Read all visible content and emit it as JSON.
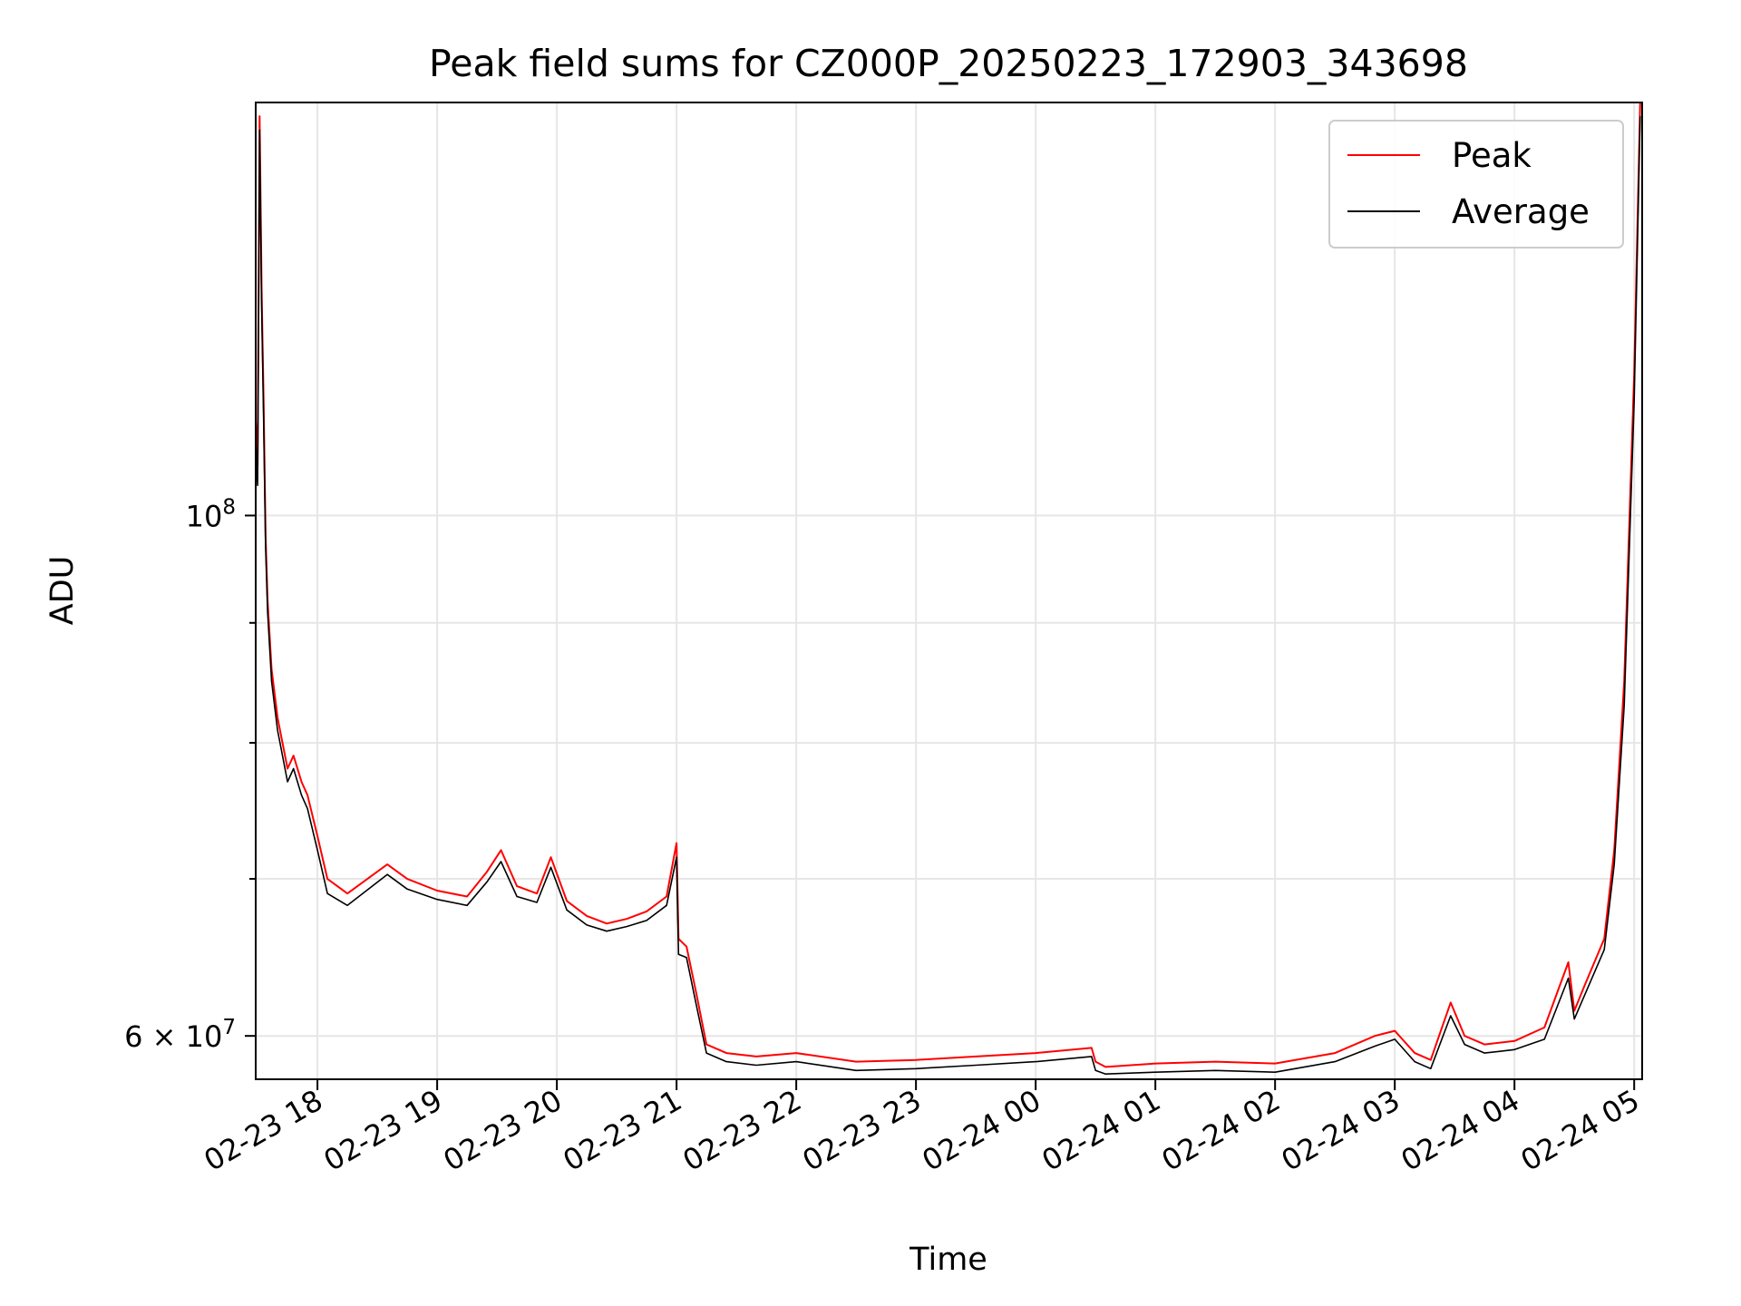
{
  "chart_data": {
    "type": "line",
    "title": "Peak field sums for CZ000P_20250223_172903_343698",
    "xlabel": "Time",
    "ylabel": "ADU",
    "y_scale": "log",
    "xlim": [
      "2025-02-23T17:29:03",
      "2025-02-24T05:04:00"
    ],
    "ylim": [
      57500000,
      150000000
    ],
    "x_ticks": [
      {
        "t": "2025-02-23T18:00",
        "label": "02-23 18"
      },
      {
        "t": "2025-02-23T19:00",
        "label": "02-23 19"
      },
      {
        "t": "2025-02-23T20:00",
        "label": "02-23 20"
      },
      {
        "t": "2025-02-23T21:00",
        "label": "02-23 21"
      },
      {
        "t": "2025-02-23T22:00",
        "label": "02-23 22"
      },
      {
        "t": "2025-02-23T23:00",
        "label": "02-23 23"
      },
      {
        "t": "2025-02-24T00:00",
        "label": "02-24 00"
      },
      {
        "t": "2025-02-24T01:00",
        "label": "02-24 01"
      },
      {
        "t": "2025-02-24T02:00",
        "label": "02-24 02"
      },
      {
        "t": "2025-02-24T03:00",
        "label": "02-24 03"
      },
      {
        "t": "2025-02-24T04:00",
        "label": "02-24 04"
      },
      {
        "t": "2025-02-24T05:00",
        "label": "02-24 05"
      }
    ],
    "y_major_ticks": [
      {
        "v": 100000000,
        "label_base": "10",
        "label_exp": "8"
      },
      {
        "v": 60000000,
        "label_base": "6 × 10",
        "label_exp": "7"
      }
    ],
    "y_minor_ticks": [
      70000000,
      80000000,
      90000000
    ],
    "grid": true,
    "legend": "top-right",
    "series": [
      {
        "name": "Peak",
        "color": "#ff0000",
        "x": [
          "2025-02-23T17:29",
          "2025-02-23T17:30",
          "2025-02-23T17:31",
          "2025-02-23T17:32",
          "2025-02-23T17:33",
          "2025-02-23T17:34",
          "2025-02-23T17:35",
          "2025-02-23T17:37",
          "2025-02-23T17:40",
          "2025-02-23T17:45",
          "2025-02-23T17:48",
          "2025-02-23T17:52",
          "2025-02-23T17:55",
          "2025-02-23T18:00",
          "2025-02-23T18:05",
          "2025-02-23T18:15",
          "2025-02-23T18:35",
          "2025-02-23T18:45",
          "2025-02-23T19:00",
          "2025-02-23T19:15",
          "2025-02-23T19:25",
          "2025-02-23T19:32",
          "2025-02-23T19:40",
          "2025-02-23T19:50",
          "2025-02-23T19:57",
          "2025-02-23T20:05",
          "2025-02-23T20:15",
          "2025-02-23T20:25",
          "2025-02-23T20:35",
          "2025-02-23T20:45",
          "2025-02-23T20:55",
          "2025-02-23T21:00",
          "2025-02-23T21:01",
          "2025-02-23T21:05",
          "2025-02-23T21:10",
          "2025-02-23T21:15",
          "2025-02-23T21:25",
          "2025-02-23T21:40",
          "2025-02-23T22:00",
          "2025-02-23T22:30",
          "2025-02-23T23:00",
          "2025-02-23T23:30",
          "2025-02-24T00:00",
          "2025-02-24T00:28",
          "2025-02-24T00:30",
          "2025-02-24T00:35",
          "2025-02-24T01:00",
          "2025-02-24T01:30",
          "2025-02-24T02:00",
          "2025-02-24T02:30",
          "2025-02-24T02:50",
          "2025-02-24T03:00",
          "2025-02-24T03:10",
          "2025-02-24T03:18",
          "2025-02-24T03:28",
          "2025-02-24T03:35",
          "2025-02-24T03:45",
          "2025-02-24T04:00",
          "2025-02-24T04:15",
          "2025-02-24T04:27",
          "2025-02-24T04:30",
          "2025-02-24T04:35",
          "2025-02-24T04:45",
          "2025-02-24T04:50",
          "2025-02-24T04:55",
          "2025-02-24T05:00",
          "2025-02-24T05:03"
        ],
        "y": [
          110000000,
          105000000,
          148000000,
          125000000,
          112000000,
          98000000,
          92000000,
          86000000,
          82000000,
          78000000,
          79000000,
          77000000,
          76000000,
          73000000,
          70000000,
          69000000,
          71000000,
          70000000,
          69200000,
          68800000,
          70500000,
          72000000,
          69500000,
          69000000,
          71500000,
          68500000,
          67500000,
          67000000,
          67300000,
          67800000,
          68800000,
          72500000,
          66000000,
          65500000,
          62500000,
          59500000,
          59000000,
          58800000,
          59000000,
          58500000,
          58600000,
          58800000,
          59000000,
          59300000,
          58500000,
          58200000,
          58400000,
          58500000,
          58400000,
          59000000,
          60000000,
          60300000,
          59000000,
          58600000,
          62000000,
          60000000,
          59500000,
          59700000,
          60500000,
          64500000,
          61500000,
          63000000,
          66000000,
          72000000,
          85000000,
          115000000,
          150000000
        ]
      },
      {
        "name": "Average",
        "color": "#000000",
        "x": [
          "2025-02-23T17:29",
          "2025-02-23T17:30",
          "2025-02-23T17:31",
          "2025-02-23T17:32",
          "2025-02-23T17:33",
          "2025-02-23T17:34",
          "2025-02-23T17:35",
          "2025-02-23T17:37",
          "2025-02-23T17:40",
          "2025-02-23T17:45",
          "2025-02-23T17:48",
          "2025-02-23T17:52",
          "2025-02-23T17:55",
          "2025-02-23T18:00",
          "2025-02-23T18:05",
          "2025-02-23T18:15",
          "2025-02-23T18:35",
          "2025-02-23T18:45",
          "2025-02-23T19:00",
          "2025-02-23T19:15",
          "2025-02-23T19:25",
          "2025-02-23T19:32",
          "2025-02-23T19:40",
          "2025-02-23T19:50",
          "2025-02-23T19:57",
          "2025-02-23T20:05",
          "2025-02-23T20:15",
          "2025-02-23T20:25",
          "2025-02-23T20:35",
          "2025-02-23T20:45",
          "2025-02-23T20:55",
          "2025-02-23T21:00",
          "2025-02-23T21:01",
          "2025-02-23T21:05",
          "2025-02-23T21:10",
          "2025-02-23T21:15",
          "2025-02-23T21:25",
          "2025-02-23T21:40",
          "2025-02-23T22:00",
          "2025-02-23T22:30",
          "2025-02-23T23:00",
          "2025-02-23T23:30",
          "2025-02-24T00:00",
          "2025-02-24T00:28",
          "2025-02-24T00:30",
          "2025-02-24T00:35",
          "2025-02-24T01:00",
          "2025-02-24T01:30",
          "2025-02-24T02:00",
          "2025-02-24T02:30",
          "2025-02-24T02:50",
          "2025-02-24T03:00",
          "2025-02-24T03:10",
          "2025-02-24T03:18",
          "2025-02-24T03:28",
          "2025-02-24T03:35",
          "2025-02-24T03:45",
          "2025-02-24T04:00",
          "2025-02-24T04:15",
          "2025-02-24T04:27",
          "2025-02-24T04:30",
          "2025-02-24T04:35",
          "2025-02-24T04:45",
          "2025-02-24T04:50",
          "2025-02-24T04:55",
          "2025-02-24T05:00",
          "2025-02-24T05:03"
        ],
        "y": [
          108000000,
          103000000,
          146000000,
          123000000,
          110000000,
          97000000,
          91000000,
          85000000,
          81000000,
          77000000,
          78000000,
          76000000,
          75000000,
          72000000,
          69000000,
          68200000,
          70300000,
          69300000,
          68600000,
          68200000,
          69800000,
          71200000,
          68800000,
          68400000,
          70800000,
          67900000,
          66900000,
          66500000,
          66800000,
          67200000,
          68200000,
          71500000,
          65000000,
          64800000,
          61800000,
          59000000,
          58500000,
          58300000,
          58500000,
          58000000,
          58100000,
          58300000,
          58500000,
          58800000,
          58000000,
          57800000,
          57900000,
          58000000,
          57900000,
          58500000,
          59400000,
          59800000,
          58500000,
          58100000,
          61200000,
          59500000,
          59000000,
          59200000,
          59800000,
          63500000,
          61000000,
          62400000,
          65300000,
          71000000,
          83000000,
          112000000,
          148000000
        ]
      }
    ]
  }
}
